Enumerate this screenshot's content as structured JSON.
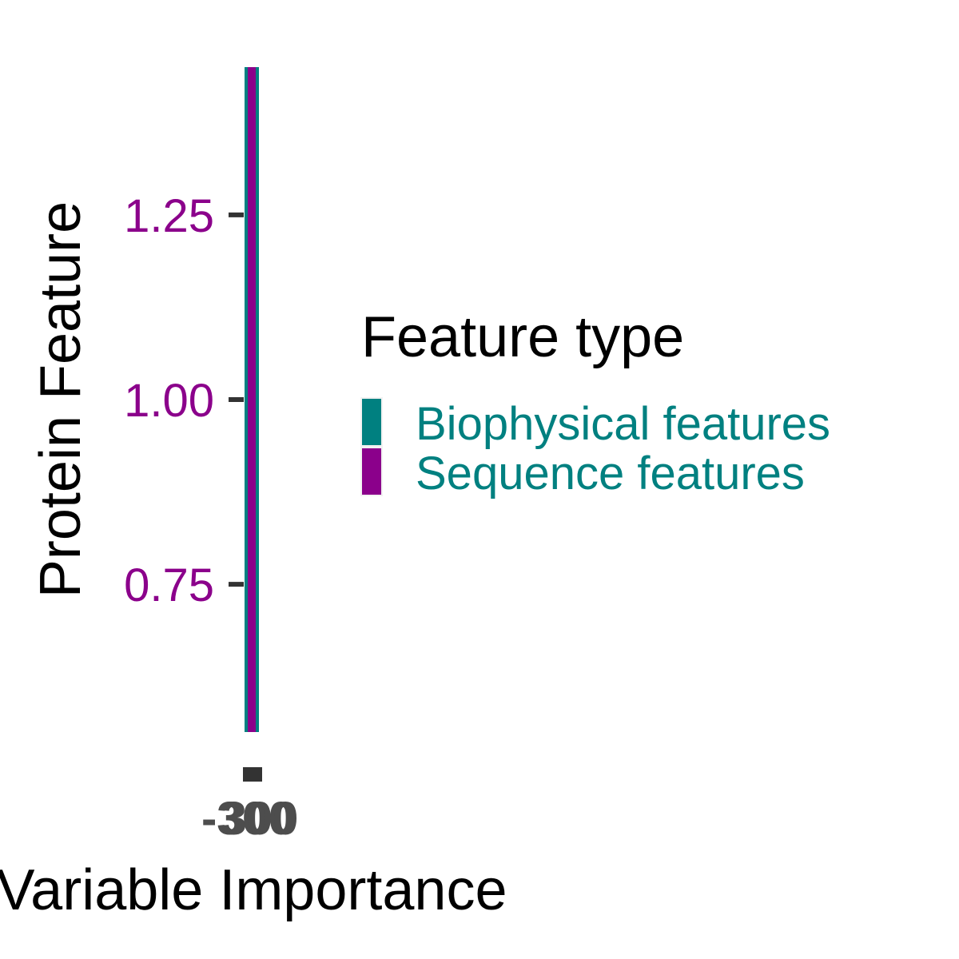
{
  "chart_data": {
    "type": "bar",
    "orientation": "horizontal",
    "xlabel": "Variable Importance",
    "ylabel": "Protein Feature",
    "x_ticks": [
      "-300",
      "0",
      "300"
    ],
    "y_ticks": [
      "0.75",
      "1.00",
      "1.25"
    ],
    "ylim": [
      0.55,
      1.45
    ],
    "series": [
      {
        "name": "Biophysical features",
        "color": "#008080",
        "values": [
          0
        ]
      },
      {
        "name": "Sequence features",
        "color": "#8B008B",
        "values": [
          0
        ]
      }
    ],
    "legend": {
      "title": "Feature type",
      "position": "right"
    },
    "tick_label_color": "#8B008B",
    "legend_label_color": "#008080"
  }
}
